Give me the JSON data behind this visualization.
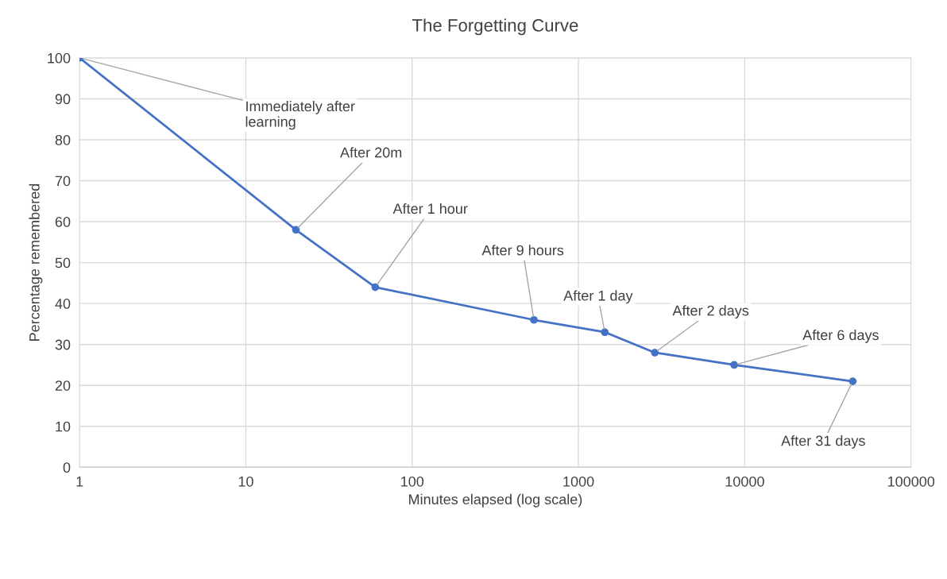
{
  "chart_data": {
    "type": "line",
    "title": "The Forgetting Curve",
    "xlabel": "Minutes elapsed (log scale)",
    "ylabel": "Percentage remembered",
    "x": [
      1,
      20,
      60,
      540,
      1440,
      2880,
      8640,
      44640
    ],
    "series": [
      {
        "color": "#4472c4",
        "values": [
          100,
          58,
          44,
          36,
          33,
          28,
          25,
          21
        ]
      }
    ],
    "log": "x",
    "xlim": [
      1,
      100000
    ],
    "xticks": [
      1,
      10,
      100,
      1000,
      10000,
      100000
    ],
    "ylim": [
      0,
      100
    ],
    "yticks": [
      0,
      10,
      20,
      30,
      40,
      50,
      60,
      70,
      80,
      90,
      100
    ],
    "grid": true,
    "marker": "circle",
    "line_style": "solid",
    "annotations": [
      {
        "text": "Immediately after\nlearning",
        "x": 1,
        "y": 100
      },
      {
        "text": "After 20m",
        "x": 20,
        "y": 58
      },
      {
        "text": "After 1 hour",
        "x": 60,
        "y": 44
      },
      {
        "text": "After 9 hours",
        "x": 540,
        "y": 36
      },
      {
        "text": "After 1 day",
        "x": 1440,
        "y": 33
      },
      {
        "text": "After 2 days",
        "x": 2880,
        "y": 28
      },
      {
        "text": "After 6 days",
        "x": 8640,
        "y": 25
      },
      {
        "text": "After 31 days",
        "x": 44640,
        "y": 21
      }
    ]
  }
}
